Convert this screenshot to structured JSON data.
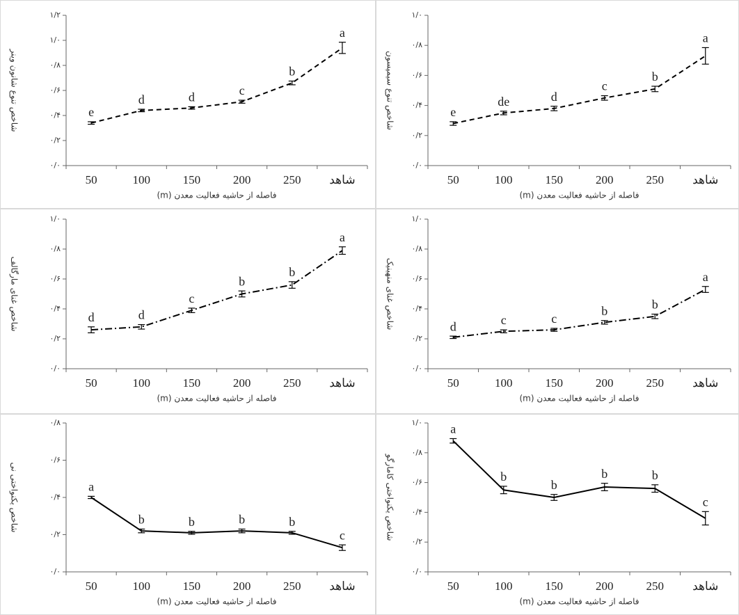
{
  "chart_data": [
    {
      "type": "line",
      "line_style": "dashed",
      "color": "#000000",
      "y_label": "شاخص تنوع شانون وینر",
      "x_label": "فاصله از حاشیه فعالیت معدن (m)",
      "categories": [
        "50",
        "100",
        "150",
        "200",
        "250",
        "شاهد"
      ],
      "values": [
        0.34,
        0.44,
        0.46,
        0.51,
        0.66,
        0.94
      ],
      "errors": [
        0.01,
        0.01,
        0.01,
        0.012,
        0.015,
        0.045
      ],
      "annotations": [
        "e",
        "d",
        "d",
        "c",
        "b",
        "a"
      ],
      "ylim": [
        0,
        1.2
      ],
      "yticks": [
        {
          "value": 0,
          "label": "۰/۰"
        },
        {
          "value": 0.2,
          "label": "۰/۲"
        },
        {
          "value": 0.4,
          "label": "۰/۴"
        },
        {
          "value": 0.6,
          "label": "۰/۶"
        },
        {
          "value": 0.8,
          "label": "۰/۸"
        },
        {
          "value": 1.0,
          "label": "۱/۰"
        },
        {
          "value": 1.2,
          "label": "۱/۲"
        }
      ]
    },
    {
      "type": "line",
      "line_style": "dashed",
      "color": "#000000",
      "y_label": "شاخص تنوع سیمپسون",
      "x_label": "فاصله از حاشیه فعالیت معدن (m)",
      "categories": [
        "50",
        "100",
        "150",
        "200",
        "250",
        "شاهد"
      ],
      "values": [
        0.28,
        0.35,
        0.38,
        0.45,
        0.51,
        0.73
      ],
      "errors": [
        0.012,
        0.012,
        0.015,
        0.015,
        0.018,
        0.055
      ],
      "annotations": [
        "e",
        "de",
        "d",
        "c",
        "b",
        "a"
      ],
      "ylim": [
        0,
        1.0
      ],
      "yticks": [
        {
          "value": 0,
          "label": "۰/۰"
        },
        {
          "value": 0.2,
          "label": "۰/۲"
        },
        {
          "value": 0.4,
          "label": "۰/۴"
        },
        {
          "value": 0.6,
          "label": "۰/۶"
        },
        {
          "value": 0.8,
          "label": "۰/۸"
        },
        {
          "value": 1.0,
          "label": "۱/۰"
        }
      ]
    },
    {
      "type": "line",
      "line_style": "dashdot",
      "color": "#000000",
      "y_label": "شاخص غنای مارگالف",
      "x_label": "فاصله از حاشیه فعالیت معدن (m)",
      "categories": [
        "50",
        "100",
        "150",
        "200",
        "250",
        "شاهد"
      ],
      "values": [
        0.26,
        0.28,
        0.39,
        0.5,
        0.56,
        0.79
      ],
      "errors": [
        0.02,
        0.015,
        0.015,
        0.02,
        0.022,
        0.025
      ],
      "annotations": [
        "d",
        "d",
        "c",
        "b",
        "b",
        "a"
      ],
      "ylim": [
        0,
        1.0
      ],
      "yticks": [
        {
          "value": 0,
          "label": "۰/۰"
        },
        {
          "value": 0.2,
          "label": "۰/۲"
        },
        {
          "value": 0.4,
          "label": "۰/۴"
        },
        {
          "value": 0.6,
          "label": "۰/۶"
        },
        {
          "value": 0.8,
          "label": "۰/۸"
        },
        {
          "value": 1.0,
          "label": "۱/۰"
        }
      ]
    },
    {
      "type": "line",
      "line_style": "dashdot",
      "color": "#000000",
      "y_label": "شاخص غنای منهینیک",
      "x_label": "فاصله از حاشیه فعالیت معدن (m)",
      "categories": [
        "50",
        "100",
        "150",
        "200",
        "250",
        "شاهد"
      ],
      "values": [
        0.21,
        0.25,
        0.26,
        0.31,
        0.35,
        0.53
      ],
      "errors": [
        0.008,
        0.01,
        0.01,
        0.012,
        0.015,
        0.02
      ],
      "annotations": [
        "d",
        "c",
        "c",
        "b",
        "b",
        "a"
      ],
      "ylim": [
        0,
        1.0
      ],
      "yticks": [
        {
          "value": 0,
          "label": "۰/۰"
        },
        {
          "value": 0.2,
          "label": "۰/۲"
        },
        {
          "value": 0.4,
          "label": "۰/۴"
        },
        {
          "value": 0.6,
          "label": "۰/۶"
        },
        {
          "value": 0.8,
          "label": "۰/۸"
        },
        {
          "value": 1.0,
          "label": "۱/۰"
        }
      ]
    },
    {
      "type": "line",
      "line_style": "solid",
      "color": "#000000",
      "y_label": "شاخص یکنواختی نی",
      "x_label": "فاصله از حاشیه فعالیت معدن (m)",
      "categories": [
        "50",
        "100",
        "150",
        "200",
        "250",
        "شاهد"
      ],
      "values": [
        0.4,
        0.22,
        0.21,
        0.22,
        0.21,
        0.13
      ],
      "errors": [
        0.006,
        0.01,
        0.008,
        0.01,
        0.008,
        0.015
      ],
      "annotations": [
        "a",
        "b",
        "b",
        "b",
        "b",
        "c"
      ],
      "ylim": [
        0,
        0.8
      ],
      "yticks": [
        {
          "value": 0,
          "label": "۰/۰"
        },
        {
          "value": 0.2,
          "label": "۰/۲"
        },
        {
          "value": 0.4,
          "label": "۰/۴"
        },
        {
          "value": 0.6,
          "label": "۰/۶"
        },
        {
          "value": 0.8,
          "label": "۰/۸"
        }
      ]
    },
    {
      "type": "line",
      "line_style": "solid",
      "color": "#000000",
      "y_label": "شاخص یکنواختی کامارگو",
      "x_label": "فاصله از حاشیه فعالیت معدن (m)",
      "categories": [
        "50",
        "100",
        "150",
        "200",
        "250",
        "شاهد"
      ],
      "values": [
        0.88,
        0.55,
        0.5,
        0.57,
        0.56,
        0.36
      ],
      "errors": [
        0.015,
        0.025,
        0.02,
        0.025,
        0.025,
        0.045
      ],
      "annotations": [
        "a",
        "b",
        "b",
        "b",
        "b",
        "c"
      ],
      "ylim": [
        0,
        1.0
      ],
      "yticks": [
        {
          "value": 0,
          "label": "۰/۰"
        },
        {
          "value": 0.2,
          "label": "۰/۲"
        },
        {
          "value": 0.4,
          "label": "۰/۴"
        },
        {
          "value": 0.6,
          "label": "۰/۶"
        },
        {
          "value": 0.8,
          "label": "۰/۸"
        },
        {
          "value": 1.0,
          "label": "۱/۰"
        }
      ]
    }
  ]
}
